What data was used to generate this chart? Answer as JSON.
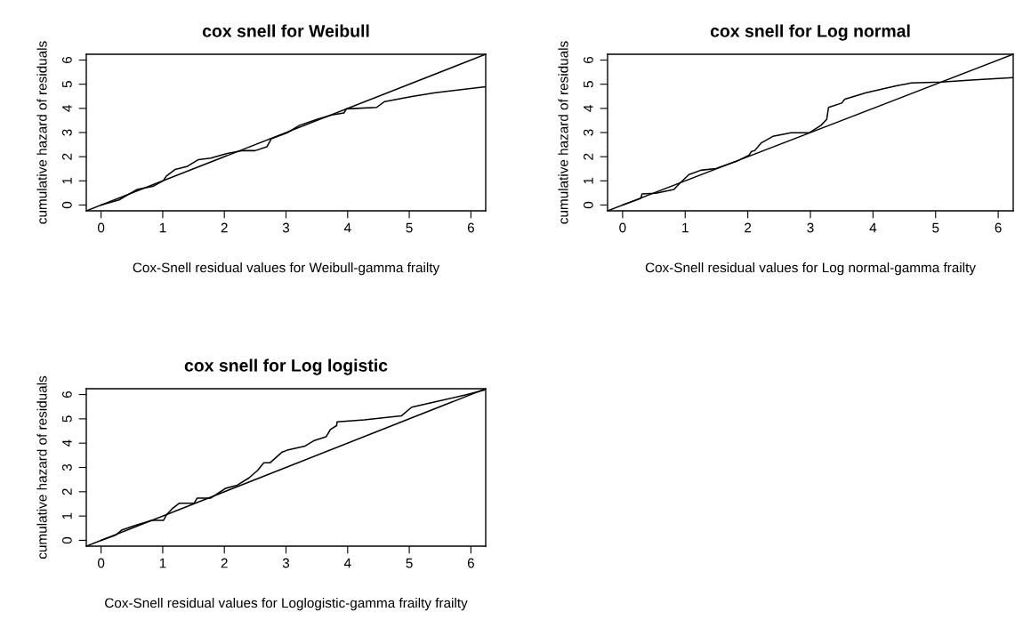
{
  "chart_data": [
    {
      "type": "line",
      "title": "cox snell for Weibull",
      "xlabel": "Cox-Snell residual values for Weibull-gamma frailty",
      "ylabel": "cumulative hazard of residuals",
      "series": [
        {
          "color": "#000000",
          "x": [
            0,
            0.29,
            0.58,
            0.84,
            1.01,
            1.06,
            1.2,
            1.39,
            1.58,
            1.78,
            2.02,
            2.3,
            2.5,
            2.69,
            2.76,
            3.02,
            3.22,
            3.5,
            3.74,
            3.94,
            3.98,
            4.47,
            4.6,
            5.04,
            5.42,
            6.24
          ],
          "values": [
            0,
            0.21,
            0.64,
            0.77,
            1.01,
            1.2,
            1.47,
            1.59,
            1.88,
            1.94,
            2.12,
            2.25,
            2.25,
            2.41,
            2.74,
            2.99,
            3.3,
            3.54,
            3.73,
            3.81,
            3.98,
            4.04,
            4.28,
            4.49,
            4.65,
            4.9
          ]
        },
        {
          "type": "line",
          "color": "#000000",
          "x": [
            -0.24,
            6.24
          ],
          "values": [
            -0.24,
            6.24
          ]
        }
      ],
      "xlim": [
        -0.24,
        6.24
      ],
      "ylim": [
        -0.24,
        6.24
      ],
      "xticks": [
        0,
        1,
        2,
        3,
        4,
        5,
        6
      ],
      "yticks": [
        0,
        1,
        2,
        3,
        4,
        5,
        6
      ]
    },
    {
      "type": "line",
      "title": "cox snell for Log normal",
      "xlabel": "Cox-Snell residual values for Log normal-gamma frailty",
      "ylabel": "cumulative hazard of residuals",
      "series": [
        {
          "color": "#000000",
          "x": [
            0,
            0.29,
            0.31,
            0.53,
            0.82,
            0.91,
            1.06,
            1.25,
            1.49,
            1.82,
            2.02,
            2.06,
            2.11,
            2.21,
            2.4,
            2.69,
            2.98,
            3.17,
            3.26,
            3.29,
            3.5,
            3.55,
            3.89,
            4.37,
            4.61,
            5.09,
            5.57,
            6.24
          ],
          "values": [
            0,
            0.27,
            0.46,
            0.49,
            0.64,
            0.89,
            1.26,
            1.44,
            1.51,
            1.81,
            2.06,
            2.22,
            2.25,
            2.56,
            2.84,
            2.99,
            2.99,
            3.3,
            3.54,
            4.04,
            4.22,
            4.38,
            4.65,
            4.93,
            5.05,
            5.09,
            5.17,
            5.27
          ]
        },
        {
          "type": "line",
          "color": "#000000",
          "x": [
            -0.24,
            6.24
          ],
          "values": [
            -0.24,
            6.24
          ]
        }
      ],
      "xlim": [
        -0.24,
        6.24
      ],
      "ylim": [
        -0.24,
        6.24
      ],
      "xticks": [
        0,
        1,
        2,
        3,
        4,
        5,
        6
      ],
      "yticks": [
        0,
        1,
        2,
        3,
        4,
        5,
        6
      ]
    },
    {
      "type": "line",
      "title": "cox snell for Log logistic",
      "xlabel": "Cox-Snell residual values for Loglogistic-gamma frailty frailty",
      "ylabel": "cumulative hazard of residuals",
      "series": [
        {
          "color": "#000000",
          "x": [
            0,
            0.24,
            0.34,
            0.53,
            0.82,
            1.01,
            1.06,
            1.15,
            1.27,
            1.51,
            1.56,
            1.78,
            2.02,
            2.21,
            2.4,
            2.54,
            2.64,
            2.74,
            2.93,
            3.02,
            3.31,
            3.46,
            3.65,
            3.72,
            3.82,
            3.83,
            4.27,
            4.87,
            5.04,
            5.42,
            5.91,
            6.22
          ],
          "values": [
            0,
            0.22,
            0.43,
            0.59,
            0.82,
            0.82,
            1.04,
            1.29,
            1.53,
            1.53,
            1.74,
            1.74,
            2.14,
            2.27,
            2.57,
            2.88,
            3.19,
            3.19,
            3.62,
            3.71,
            3.88,
            4.11,
            4.26,
            4.56,
            4.72,
            4.88,
            4.96,
            5.12,
            5.48,
            5.7,
            5.98,
            6.19
          ]
        },
        {
          "type": "line",
          "color": "#000000",
          "x": [
            -0.24,
            6.24
          ],
          "values": [
            -0.24,
            6.24
          ]
        }
      ],
      "xlim": [
        -0.24,
        6.24
      ],
      "ylim": [
        -0.24,
        6.24
      ],
      "xticks": [
        0,
        1,
        2,
        3,
        4,
        5,
        6
      ],
      "yticks": [
        0,
        1,
        2,
        3,
        4,
        5,
        6
      ]
    }
  ]
}
